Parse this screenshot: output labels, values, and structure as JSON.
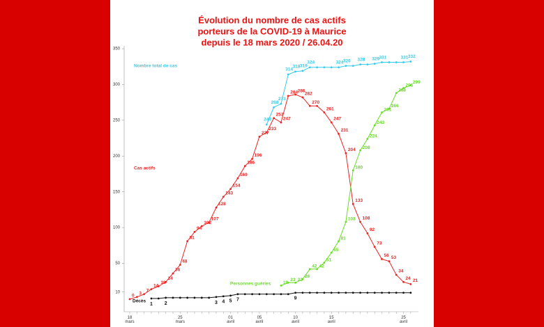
{
  "chart_data": {
    "type": "line",
    "title": [
      "Évolution du nombre de cas actifs",
      "porteurs de la COVID-19 à Maurice",
      "depuis le 18 mars 2020  /  26.04.20"
    ],
    "categories": [
      "18 mars",
      null,
      null,
      null,
      null,
      null,
      null,
      "25 mars",
      null,
      null,
      null,
      null,
      null,
      null,
      "01 avril",
      null,
      null,
      null,
      "05 avril",
      null,
      null,
      null,
      null,
      "10 avril",
      null,
      null,
      null,
      null,
      "15 avril",
      null,
      null,
      null,
      null,
      null,
      null,
      null,
      null,
      null,
      "25 avril",
      null
    ],
    "ylim": [
      0,
      350
    ],
    "yticks": [
      10,
      50,
      100,
      150,
      200,
      250,
      300,
      350
    ],
    "series": [
      {
        "name": "Nombre total de cas",
        "color": "#33ccee",
        "values": [
          null,
          null,
          null,
          null,
          null,
          null,
          null,
          null,
          null,
          null,
          null,
          null,
          null,
          null,
          null,
          null,
          null,
          null,
          null,
          244,
          268,
          273,
          314,
          318,
          319,
          324,
          324,
          324,
          324,
          324,
          326,
          326,
          328,
          328,
          329,
          331,
          331,
          331,
          331,
          332
        ],
        "value_labels": [
          null,
          null,
          null,
          null,
          null,
          null,
          null,
          null,
          null,
          null,
          null,
          null,
          null,
          null,
          null,
          null,
          null,
          null,
          null,
          "244",
          "268",
          "273",
          "314",
          "318",
          "319",
          "324",
          null,
          null,
          null,
          "324",
          "326",
          null,
          "328",
          null,
          "329",
          "331",
          null,
          null,
          "331",
          "332"
        ]
      },
      {
        "name": "Cas actifs",
        "color": "#ee2222",
        "values": [
          0,
          3,
          7,
          14,
          18,
          24,
          36,
          48,
          81,
          94,
          102,
          107,
          128,
          143,
          154,
          169,
          186,
          196,
          227,
          233,
          253,
          247,
          284,
          286,
          282,
          270,
          270,
          261,
          247,
          231,
          204,
          133,
          108,
          92,
          73,
          56,
          53,
          34,
          24,
          21
        ],
        "value_labels": [
          "0",
          "3",
          "7",
          "14",
          "18",
          "24",
          "36",
          "48",
          "81",
          "94",
          "102",
          "107",
          "128",
          "143",
          "154",
          "169",
          "186",
          "196",
          "227",
          "233",
          "253",
          "247",
          "284",
          "286",
          "282",
          "270",
          null,
          "261",
          "247",
          "231",
          "204",
          "133",
          "108",
          "92",
          "73",
          "56",
          "53",
          "34",
          "24",
          "21"
        ]
      },
      {
        "name": "Personnes guéries",
        "color": "#66dd22",
        "values": [
          null,
          null,
          null,
          null,
          null,
          null,
          null,
          null,
          null,
          null,
          null,
          null,
          null,
          null,
          null,
          null,
          null,
          null,
          null,
          null,
          null,
          19,
          23,
          23,
          28,
          42,
          42,
          51,
          65,
          81,
          108,
          180,
          208,
          224,
          243,
          261,
          266,
          288,
          295,
          299
        ],
        "value_labels": [
          null,
          null,
          null,
          null,
          null,
          null,
          null,
          null,
          null,
          null,
          null,
          null,
          null,
          null,
          null,
          null,
          null,
          null,
          null,
          null,
          null,
          "19",
          "23",
          "23",
          "28",
          "42",
          "42",
          "51",
          "65",
          "81",
          "108",
          "180",
          "208",
          "224",
          "243",
          "261",
          "266",
          "288",
          "295",
          "299"
        ]
      },
      {
        "name": "Décès",
        "color": "#111111",
        "values": [
          null,
          null,
          null,
          1,
          1,
          2,
          2,
          2,
          2,
          2,
          2,
          2,
          3,
          4,
          5,
          7,
          7,
          7,
          7,
          7,
          7,
          7,
          7,
          9,
          9,
          9,
          9,
          9,
          9,
          9,
          9,
          9,
          9,
          9,
          9,
          9,
          9,
          9,
          9,
          9
        ],
        "value_labels": [
          null,
          null,
          null,
          "1",
          null,
          "2",
          null,
          null,
          null,
          null,
          null,
          null,
          "3",
          "4",
          "5",
          "7",
          null,
          null,
          null,
          null,
          null,
          null,
          null,
          "9",
          null,
          null,
          null,
          null,
          null,
          null,
          null,
          null,
          null,
          null,
          null,
          null,
          null,
          null,
          null,
          null
        ]
      }
    ]
  }
}
